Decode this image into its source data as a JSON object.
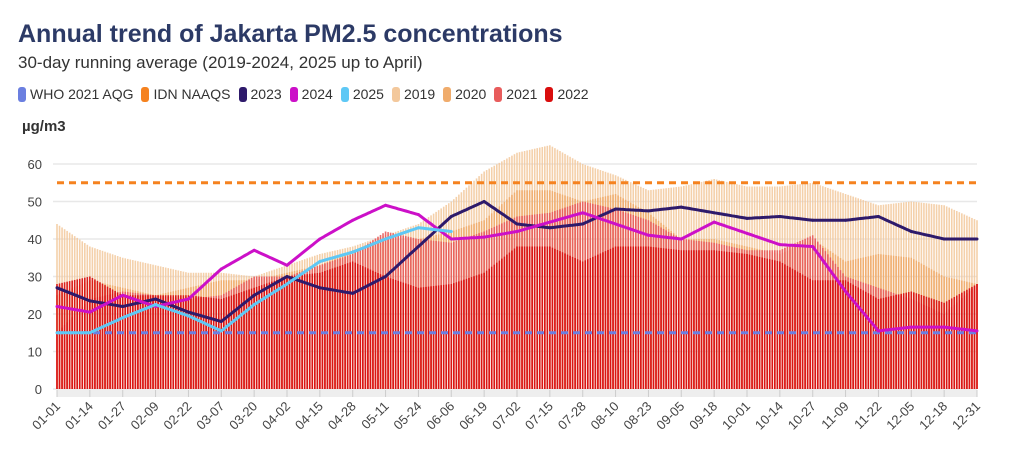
{
  "chart_data": {
    "type": "bar",
    "title": "Annual trend of Jakarta PM2.5 concentrations",
    "subtitle": "30-day running average (2019-2024, 2025 up to April)",
    "ylabel": "µg/m3",
    "ylim": [
      0,
      65
    ],
    "yticks": [
      0,
      10,
      20,
      30,
      40,
      50,
      60
    ],
    "grid": true,
    "legend_position": "top",
    "categories": [
      "01-01",
      "01-14",
      "01-27",
      "02-09",
      "02-22",
      "03-07",
      "03-20",
      "04-02",
      "04-15",
      "04-28",
      "05-11",
      "05-24",
      "06-06",
      "06-19",
      "07-02",
      "07-15",
      "07-28",
      "08-10",
      "08-23",
      "09-05",
      "09-18",
      "10-01",
      "10-14",
      "10-27",
      "11-09",
      "11-22",
      "12-05",
      "12-18",
      "12-31"
    ],
    "reference_lines": [
      {
        "name": "WHO 2021 AQG",
        "value": 15,
        "color": "#6b7fe0"
      },
      {
        "name": "IDN NAAQS",
        "value": 55,
        "color": "#f5821f"
      }
    ],
    "bar_series": [
      {
        "name": "2019",
        "color": "#f3c89c",
        "values": [
          44,
          38,
          35,
          33,
          31,
          31,
          30,
          33,
          36,
          38,
          41,
          44,
          50,
          58,
          63,
          65,
          60,
          57,
          53,
          54,
          56,
          54,
          54,
          55,
          52,
          49,
          50,
          49,
          45
        ]
      },
      {
        "name": "2020",
        "color": "#f0ac6c",
        "values": [
          25,
          29,
          27,
          25,
          27,
          29,
          29,
          31,
          33,
          37,
          40,
          40,
          42,
          45,
          53,
          53,
          50,
          52,
          47,
          40,
          40,
          38,
          36,
          40,
          34,
          36,
          35,
          30,
          28
        ]
      },
      {
        "name": "2021",
        "color": "#e85c5c",
        "values": [
          15,
          24,
          26,
          25,
          24,
          25,
          30,
          30,
          33,
          36,
          42,
          40,
          39,
          42,
          46,
          47,
          50,
          48,
          45,
          40,
          39,
          37,
          37,
          41,
          30,
          27,
          24,
          20,
          28
        ]
      },
      {
        "name": "2022",
        "color": "#d90d0d",
        "values": [
          28,
          30,
          25,
          25,
          25,
          24,
          27,
          30,
          31,
          34,
          30,
          27,
          28,
          31,
          38,
          38,
          34,
          38,
          38,
          37,
          37,
          36,
          34,
          29,
          29,
          24,
          26,
          23,
          28
        ]
      }
    ],
    "line_series": [
      {
        "name": "2023",
        "color": "#2e1a6b",
        "values": [
          27,
          23.5,
          22,
          24,
          20.5,
          18,
          25,
          30,
          27,
          25.5,
          30,
          38,
          46,
          50,
          44,
          43,
          44,
          48,
          47.5,
          48.5,
          47,
          45.5,
          46,
          45,
          45,
          46,
          42,
          40,
          40
        ]
      },
      {
        "name": "2024",
        "color": "#cc10c8",
        "values": [
          22,
          20.5,
          25,
          22,
          24,
          32,
          37,
          33,
          40,
          45,
          49,
          46.5,
          40,
          40.5,
          42,
          44.5,
          47,
          44,
          41,
          40,
          44.5,
          41.5,
          38.5,
          38,
          26,
          15.5,
          16.5,
          16.5,
          15.5
        ]
      },
      {
        "name": "2025",
        "color": "#5ec8f5",
        "values": [
          15,
          15,
          19,
          22.5,
          19.5,
          15.5,
          22.5,
          28,
          34,
          36.5,
          40,
          43,
          42,
          null,
          null,
          null,
          null,
          null,
          null,
          null,
          null,
          null,
          null,
          null,
          null,
          null,
          null,
          null,
          null
        ]
      }
    ]
  },
  "legend": [
    {
      "label": "WHO 2021 AQG",
      "color": "#6b7fe0"
    },
    {
      "label": "IDN NAAQS",
      "color": "#f5821f"
    },
    {
      "label": "2023",
      "color": "#2e1a6b"
    },
    {
      "label": "2024",
      "color": "#cc10c8"
    },
    {
      "label": "2025",
      "color": "#5ec8f5"
    },
    {
      "label": "2019",
      "color": "#f3c89c"
    },
    {
      "label": "2020",
      "color": "#f0ac6c"
    },
    {
      "label": "2021",
      "color": "#e85c5c"
    },
    {
      "label": "2022",
      "color": "#d90d0d"
    }
  ]
}
